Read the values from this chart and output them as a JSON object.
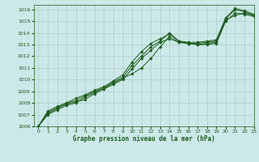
{
  "title": "Graphe pression niveau de la mer (hPa)",
  "bg_color": "#cce8e8",
  "grid_color": "#aacccc",
  "line_color": "#1a5c1a",
  "marker_color": "#1a5c1a",
  "xlim": [
    -0.5,
    23
  ],
  "ylim": [
    1006,
    1016.4
  ],
  "xticks": [
    0,
    1,
    2,
    3,
    4,
    5,
    6,
    7,
    8,
    9,
    10,
    11,
    12,
    13,
    14,
    15,
    16,
    17,
    18,
    19,
    20,
    21,
    22,
    23
  ],
  "yticks": [
    1006,
    1007,
    1008,
    1009,
    1010,
    1011,
    1012,
    1013,
    1014,
    1015,
    1016
  ],
  "series": [
    [
      1006.0,
      1007.1,
      1007.5,
      1007.9,
      1008.1,
      1008.3,
      1008.8,
      1009.2,
      1009.7,
      1010.1,
      1010.5,
      1011.0,
      1011.8,
      1012.8,
      1013.7,
      1013.2,
      1013.1,
      1013.0,
      1013.0,
      1013.1,
      1015.0,
      1015.7,
      1015.6,
      1015.4
    ],
    [
      1006.0,
      1007.2,
      1007.6,
      1008.0,
      1008.2,
      1008.6,
      1009.0,
      1009.3,
      1009.8,
      1010.2,
      1011.2,
      1012.0,
      1012.8,
      1013.3,
      1014.0,
      1013.3,
      1013.1,
      1013.1,
      1013.2,
      1013.3,
      1015.2,
      1016.0,
      1015.8,
      1015.5
    ],
    [
      1006.0,
      1007.3,
      1007.7,
      1008.0,
      1008.4,
      1008.7,
      1009.1,
      1009.4,
      1009.9,
      1010.4,
      1011.5,
      1012.4,
      1013.1,
      1013.5,
      1013.9,
      1013.3,
      1013.2,
      1013.2,
      1013.3,
      1013.4,
      1015.3,
      1016.1,
      1015.9,
      1015.6
    ],
    [
      1006.0,
      1007.0,
      1007.4,
      1007.8,
      1008.0,
      1008.5,
      1008.9,
      1009.2,
      1009.6,
      1010.0,
      1010.9,
      1011.8,
      1012.5,
      1013.2,
      1013.5,
      1013.2,
      1013.1,
      1013.0,
      1013.1,
      1013.2,
      1015.1,
      1015.5,
      1015.7,
      1015.5
    ]
  ],
  "title_fontsize": 5.5,
  "tick_fontsize": 4.5,
  "linewidth": 0.7,
  "markersize": 1.8
}
